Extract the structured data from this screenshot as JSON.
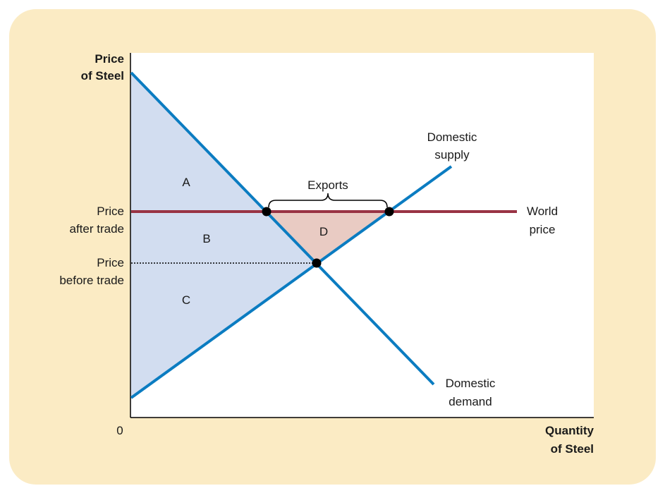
{
  "colors": {
    "panel_bg": "#FBEBC4",
    "plot_bg": "#FFFFFF",
    "curve": "#0B7CC1",
    "world_price": "#993344",
    "consumer_producer_surplus_fill": "#D2DDF0",
    "gain_fill": "#E9CBC3",
    "axis": "#000000",
    "point": "#000000"
  },
  "axes": {
    "y_title": [
      "Price",
      "of Steel"
    ],
    "x_title": [
      "Quantity",
      "of Steel"
    ],
    "origin": "0"
  },
  "price_labels": {
    "after_trade": [
      "Price",
      "after trade"
    ],
    "before_trade": [
      "Price",
      "before trade"
    ]
  },
  "curves": {
    "supply": [
      "Domestic",
      "supply"
    ],
    "demand": [
      "Domestic",
      "demand"
    ],
    "world_price": [
      "World",
      "price"
    ]
  },
  "regions": {
    "a": "A",
    "b": "B",
    "c": "C",
    "d": "D"
  },
  "exports_label": "Exports"
}
